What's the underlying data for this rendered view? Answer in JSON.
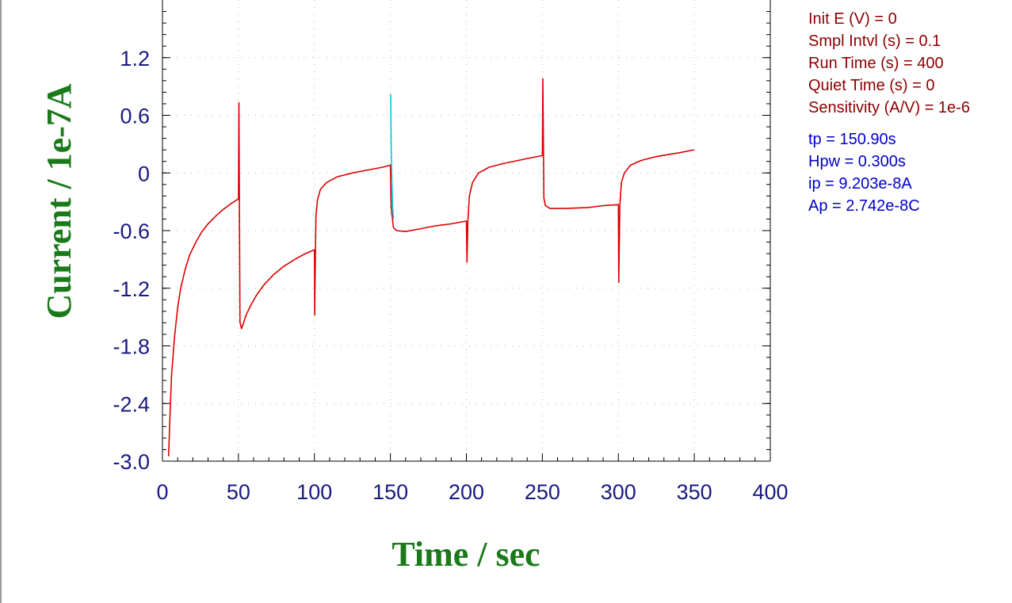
{
  "chart_data": {
    "type": "line",
    "xlabel": "Time / sec",
    "ylabel": "Current / 1e-7A",
    "xlim": [
      0,
      400
    ],
    "ylim": [
      -3.0,
      1.8
    ],
    "x_ticks": [
      "0",
      "50",
      "100",
      "150",
      "200",
      "250",
      "300",
      "350",
      "400"
    ],
    "y_ticks": [
      "-3.0",
      "-2.4",
      "-1.8",
      "-1.2",
      "-0.6",
      "0",
      "0.6",
      "1.2"
    ],
    "grid": "dotted",
    "series": [
      {
        "color": "#dd0000",
        "x": [
          4,
          5,
          6,
          8,
          10,
          12,
          15,
          18,
          22,
          26,
          30,
          35,
          40,
          45,
          50,
          50.3,
          51,
          52,
          53,
          55,
          58,
          62,
          67,
          73,
          80,
          87,
          94,
          100,
          100.2,
          100.7,
          101,
          102,
          104,
          108,
          115,
          125,
          135,
          145,
          150,
          150.5,
          152,
          154,
          160,
          170,
          180,
          190,
          200,
          200.4,
          201,
          202,
          204,
          208,
          215,
          225,
          240,
          250,
          250.3,
          251,
          252,
          255,
          265,
          280,
          290,
          300,
          300.3,
          301,
          302,
          304,
          308,
          315,
          325,
          340,
          350
        ],
        "y": [
          -2.95,
          -2.5,
          -2.1,
          -1.7,
          -1.4,
          -1.2,
          -1.0,
          -0.85,
          -0.72,
          -0.61,
          -0.53,
          -0.45,
          -0.38,
          -0.32,
          -0.27,
          0.73,
          -1.55,
          -1.62,
          -1.58,
          -1.48,
          -1.38,
          -1.27,
          -1.16,
          -1.06,
          -0.97,
          -0.9,
          -0.84,
          -0.8,
          -1.48,
          -0.78,
          -0.45,
          -0.28,
          -0.17,
          -0.1,
          -0.04,
          0.0,
          0.03,
          0.06,
          0.08,
          -0.36,
          -0.57,
          -0.6,
          -0.61,
          -0.58,
          -0.55,
          -0.53,
          -0.5,
          -0.93,
          -0.5,
          -0.24,
          -0.1,
          0.0,
          0.06,
          0.1,
          0.15,
          0.18,
          0.98,
          -0.26,
          -0.34,
          -0.37,
          -0.37,
          -0.36,
          -0.34,
          -0.33,
          -1.14,
          -0.33,
          -0.1,
          0.0,
          0.08,
          0.13,
          0.17,
          0.21,
          0.24
        ]
      },
      {
        "color": "#00c8d8",
        "x": [
          150.2,
          150.5,
          151,
          151.5,
          152
        ],
        "y": [
          0.82,
          0.3,
          -0.1,
          -0.36,
          -0.48
        ]
      }
    ]
  },
  "params": [
    "Init E (V) = 0",
    "Smpl Intvl (s) = 0.1",
    "Run Time (s) = 400",
    "Quiet Time (s) = 0",
    "Sensitivity (A/V) = 1e-6"
  ],
  "results": [
    "tp = 150.90s",
    "Hpw = 0.300s",
    "ip = 9.203e-8A",
    "Ap = 2.742e-8C"
  ]
}
